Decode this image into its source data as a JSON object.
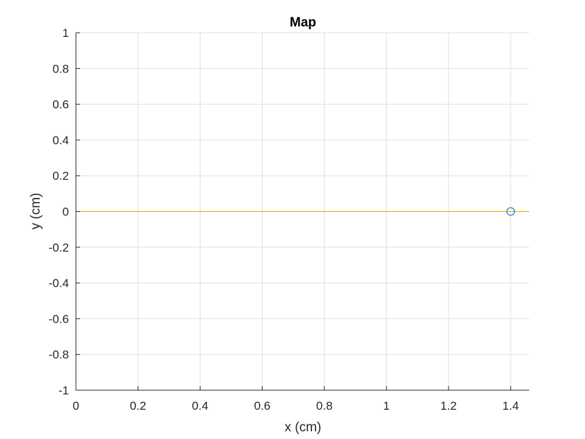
{
  "chart_data": {
    "type": "scatter",
    "title": "Map",
    "xlabel": "x (cm)",
    "ylabel": "y (cm)",
    "xlim": [
      0,
      1.46
    ],
    "ylim": [
      -1,
      1
    ],
    "grid": true,
    "xticks": [
      {
        "value": 0,
        "label": "0"
      },
      {
        "value": 0.2,
        "label": "0.2"
      },
      {
        "value": 0.4,
        "label": "0.4"
      },
      {
        "value": 0.6,
        "label": "0.6"
      },
      {
        "value": 0.8,
        "label": "0.8"
      },
      {
        "value": 1,
        "label": "1"
      },
      {
        "value": 1.2,
        "label": "1.2"
      },
      {
        "value": 1.4,
        "label": "1.4"
      }
    ],
    "yticks": [
      {
        "value": 1,
        "label": "1"
      },
      {
        "value": 0.8,
        "label": "0.8"
      },
      {
        "value": 0.6,
        "label": "0.6"
      },
      {
        "value": 0.4,
        "label": "0.4"
      },
      {
        "value": 0.2,
        "label": "0.2"
      },
      {
        "value": 0,
        "label": "0"
      },
      {
        "value": -0.2,
        "label": "-0.2"
      },
      {
        "value": -0.4,
        "label": "-0.4"
      },
      {
        "value": -0.6,
        "label": "-0.6"
      },
      {
        "value": -0.8,
        "label": "-0.8"
      },
      {
        "value": -1,
        "label": "-1"
      }
    ],
    "series": [
      {
        "type": "line",
        "color": "#EDB120",
        "x": [
          0,
          1.46
        ],
        "y": [
          0,
          0
        ]
      },
      {
        "type": "scatter",
        "marker": "circle",
        "color": "#0072BD",
        "x": [
          1.4
        ],
        "y": [
          0
        ]
      }
    ]
  }
}
